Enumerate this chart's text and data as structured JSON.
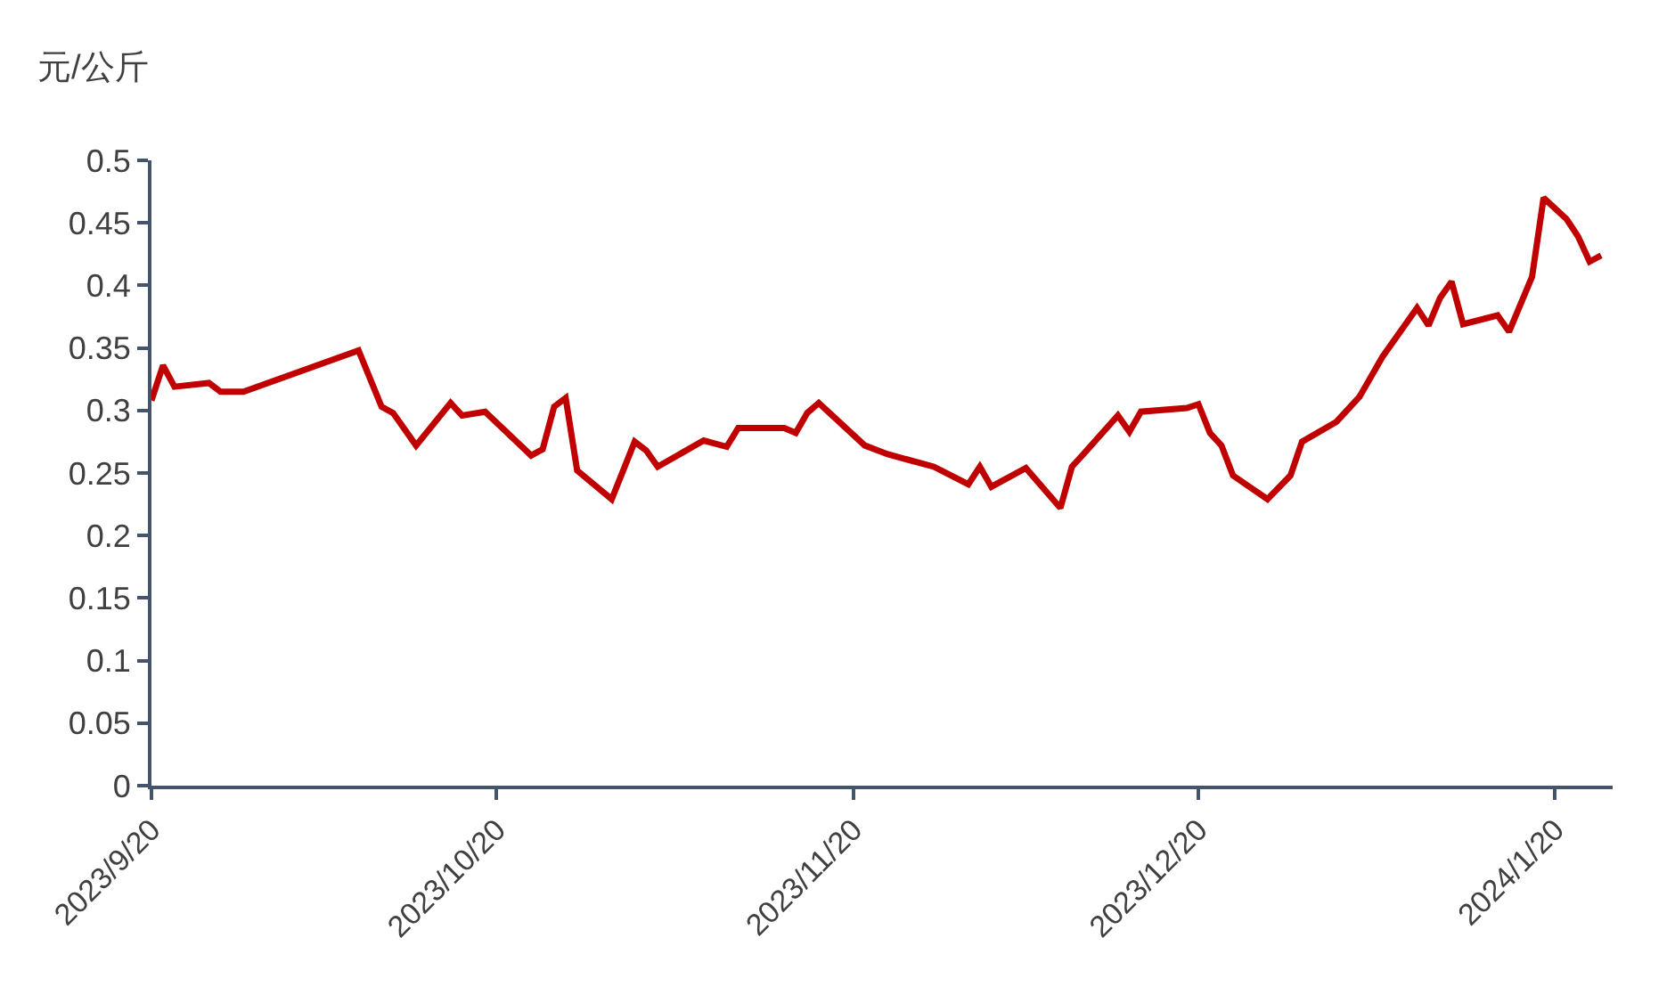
{
  "chart_data": {
    "type": "line",
    "ylabel": "元/公斤",
    "x": [
      "2023-09-20",
      "2023-09-21",
      "2023-09-22",
      "2023-09-25",
      "2023-09-26",
      "2023-09-28",
      "2023-10-08",
      "2023-10-10",
      "2023-10-11",
      "2023-10-13",
      "2023-10-16",
      "2023-10-17",
      "2023-10-19",
      "2023-10-23",
      "2023-10-24",
      "2023-10-25",
      "2023-10-26",
      "2023-10-27",
      "2023-10-30",
      "2023-11-01",
      "2023-11-02",
      "2023-11-03",
      "2023-11-07",
      "2023-11-09",
      "2023-11-10",
      "2023-11-14",
      "2023-11-15",
      "2023-11-16",
      "2023-11-17",
      "2023-11-21",
      "2023-11-23",
      "2023-11-27",
      "2023-11-30",
      "2023-12-01",
      "2023-12-02",
      "2023-12-05",
      "2023-12-08",
      "2023-12-09",
      "2023-12-10",
      "2023-12-13",
      "2023-12-14",
      "2023-12-15",
      "2023-12-19",
      "2023-12-20",
      "2023-12-21",
      "2023-12-22",
      "2023-12-23",
      "2023-12-26",
      "2023-12-28",
      "2023-12-29",
      "2024-01-01",
      "2024-01-03",
      "2024-01-05",
      "2024-01-08",
      "2024-01-09",
      "2024-01-10",
      "2024-01-11",
      "2024-01-12",
      "2024-01-15",
      "2024-01-16",
      "2024-01-18",
      "2024-01-19",
      "2024-01-21",
      "2024-01-22",
      "2024-01-23",
      "2024-01-24"
    ],
    "series": [
      {
        "color": "#c00000",
        "values": [
          0.308,
          0.336,
          0.319,
          0.322,
          0.315,
          0.315,
          0.348,
          0.303,
          0.298,
          0.272,
          0.306,
          0.296,
          0.299,
          0.264,
          0.269,
          0.303,
          0.31,
          0.252,
          0.229,
          0.275,
          0.268,
          0.255,
          0.276,
          0.271,
          0.286,
          0.286,
          0.282,
          0.298,
          0.306,
          0.272,
          0.265,
          0.255,
          0.241,
          0.255,
          0.239,
          0.254,
          0.222,
          0.255,
          0.265,
          0.296,
          0.283,
          0.299,
          0.302,
          0.305,
          0.282,
          0.272,
          0.248,
          0.229,
          0.248,
          0.275,
          0.291,
          0.311,
          0.343,
          0.382,
          0.368,
          0.39,
          0.403,
          0.369,
          0.376,
          0.363,
          0.407,
          0.47,
          0.453,
          0.439,
          0.419,
          0.424
        ]
      }
    ],
    "xlim": [
      "2023-09-20",
      "2024-01-25"
    ],
    "xticks": [
      {
        "value": "2023-09-20",
        "label": "2023/9/20"
      },
      {
        "value": "2023-10-20",
        "label": "2023/10/20"
      },
      {
        "value": "2023-11-20",
        "label": "2023/11/20"
      },
      {
        "value": "2023-12-20",
        "label": "2023/12/20"
      },
      {
        "value": "2024-01-20",
        "label": "2024/1/20"
      }
    ],
    "ylim": [
      0,
      0.5
    ],
    "yticks": [
      0,
      0.05,
      0.1,
      0.15,
      0.2,
      0.25,
      0.3,
      0.35,
      0.4,
      0.45,
      0.5
    ],
    "grid": false,
    "legend": false,
    "line_style": "solid",
    "marker": "none"
  }
}
